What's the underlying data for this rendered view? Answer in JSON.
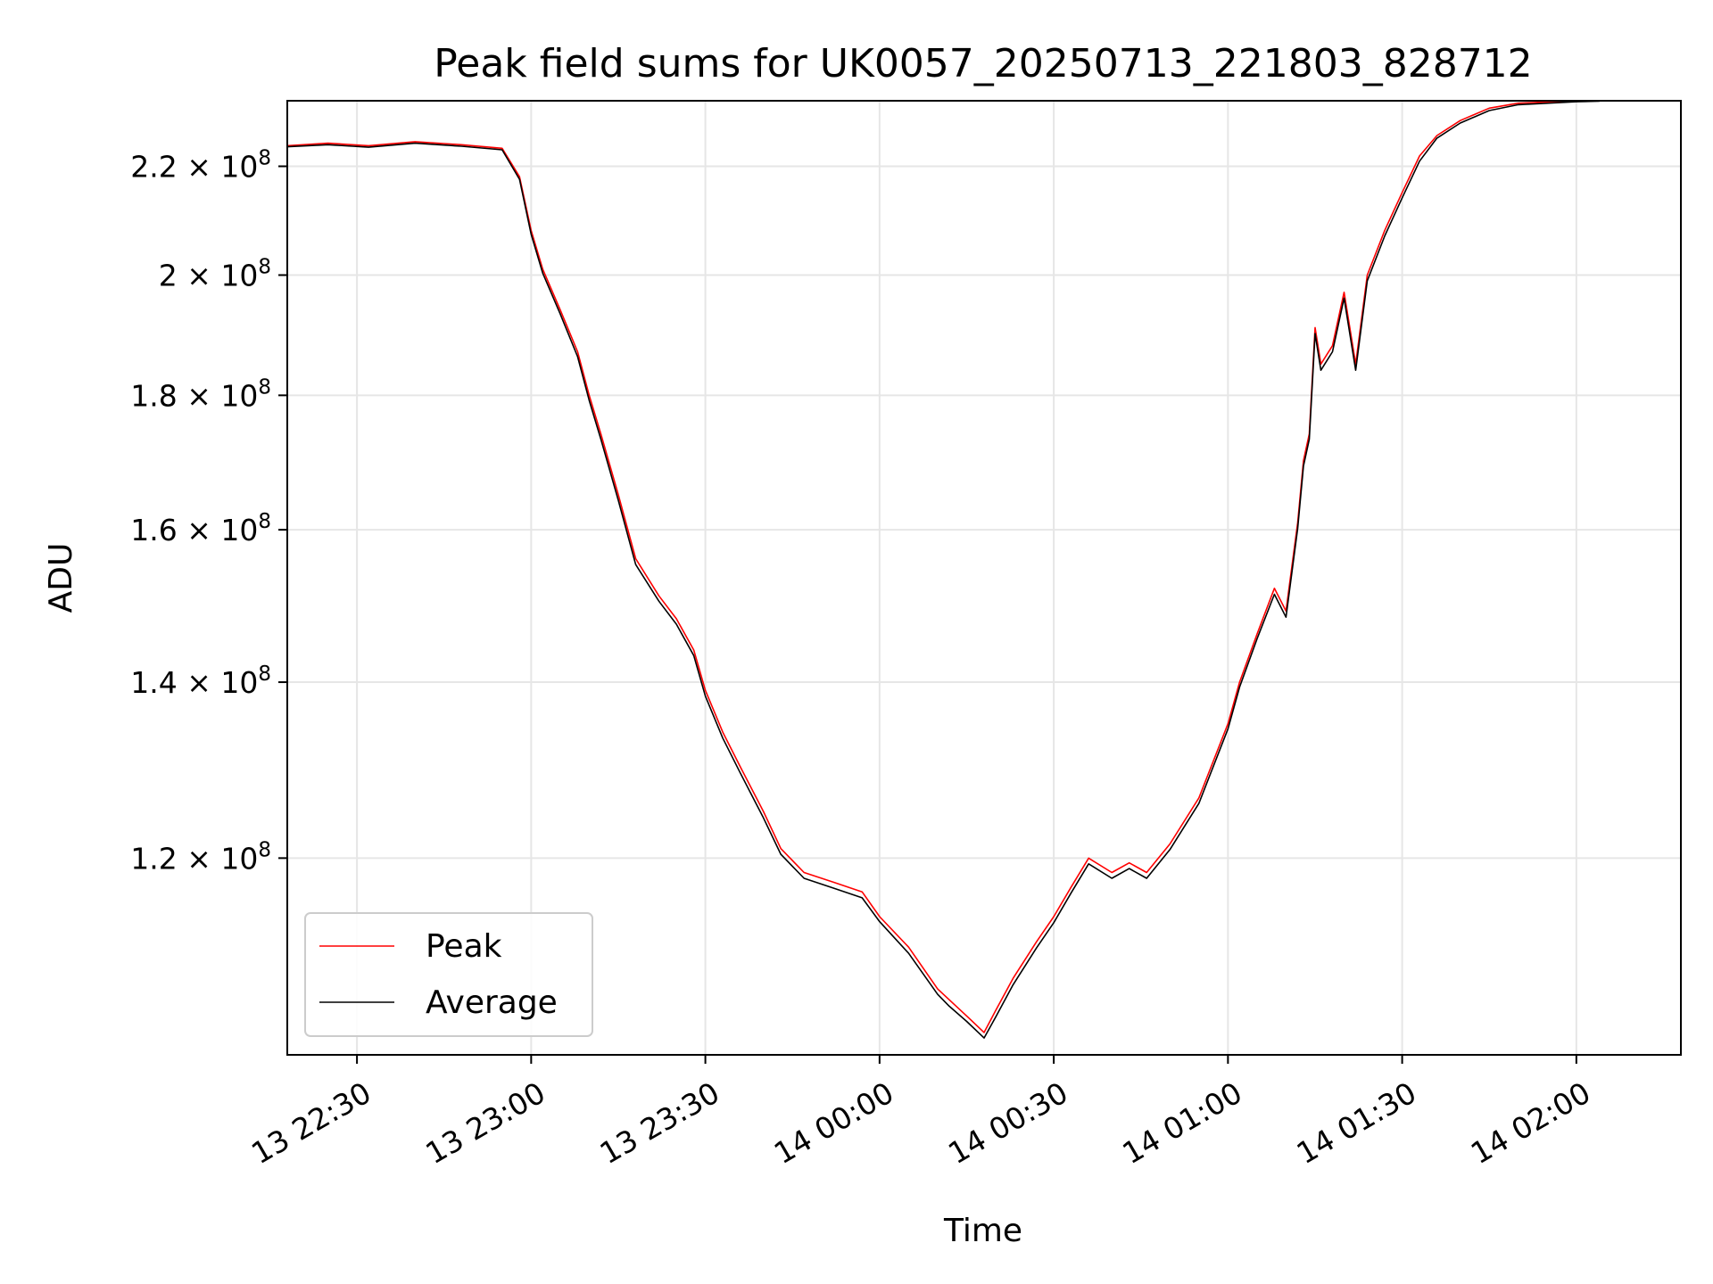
{
  "chart_data": {
    "type": "line",
    "title": "Peak field sums for UK0057_20250713_221803_828712",
    "xlabel": "Time",
    "ylabel": "ADU",
    "y_scale": "log",
    "grid": true,
    "legend_position": "lower-left",
    "xlim": [
      "2025-07-13T22:18:00",
      "2025-07-14T02:18:00"
    ],
    "ylim": [
      101000000,
      233000000
    ],
    "x_ticks": [
      {
        "value": "2025-07-13T22:30:00",
        "label": "13 22:30"
      },
      {
        "value": "2025-07-13T23:00:00",
        "label": "13 23:00"
      },
      {
        "value": "2025-07-13T23:30:00",
        "label": "13 23:30"
      },
      {
        "value": "2025-07-14T00:00:00",
        "label": "14 00:00"
      },
      {
        "value": "2025-07-14T00:30:00",
        "label": "14 00:30"
      },
      {
        "value": "2025-07-14T01:00:00",
        "label": "14 01:00"
      },
      {
        "value": "2025-07-14T01:30:00",
        "label": "14 01:30"
      },
      {
        "value": "2025-07-14T02:00:00",
        "label": "14 02:00"
      }
    ],
    "y_ticks": [
      {
        "value": 120000000,
        "mantissa": "1.2",
        "base": "10",
        "exponent": "8"
      },
      {
        "value": 140000000,
        "mantissa": "1.4",
        "base": "10",
        "exponent": "8"
      },
      {
        "value": 160000000,
        "mantissa": "1.6",
        "base": "10",
        "exponent": "8"
      },
      {
        "value": 180000000,
        "mantissa": "1.8",
        "base": "10",
        "exponent": "8"
      },
      {
        "value": 200000000,
        "mantissa": "2",
        "base": "10",
        "exponent": "8"
      },
      {
        "value": 220000000,
        "mantissa": "2.2",
        "base": "10",
        "exponent": "8"
      }
    ],
    "series": [
      {
        "name": "Peak",
        "color": "#ff0000",
        "x": [
          "2025-07-13T22:18:00",
          "2025-07-13T22:25:00",
          "2025-07-13T22:32:00",
          "2025-07-13T22:40:00",
          "2025-07-13T22:48:00",
          "2025-07-13T22:55:00",
          "2025-07-13T22:58:00",
          "2025-07-13T23:00:00",
          "2025-07-13T23:02:00",
          "2025-07-13T23:05:00",
          "2025-07-13T23:08:00",
          "2025-07-13T23:10:00",
          "2025-07-13T23:12:00",
          "2025-07-13T23:15:00",
          "2025-07-13T23:18:00",
          "2025-07-13T23:22:00",
          "2025-07-13T23:25:00",
          "2025-07-13T23:28:00",
          "2025-07-13T23:30:00",
          "2025-07-13T23:33:00",
          "2025-07-13T23:36:00",
          "2025-07-13T23:40:00",
          "2025-07-13T23:43:00",
          "2025-07-13T23:47:00",
          "2025-07-13T23:52:00",
          "2025-07-13T23:57:00",
          "2025-07-14T00:00:00",
          "2025-07-14T00:05:00",
          "2025-07-14T00:10:00",
          "2025-07-14T00:12:00",
          "2025-07-14T00:15:00",
          "2025-07-14T00:18:00",
          "2025-07-14T00:20:00",
          "2025-07-14T00:23:00",
          "2025-07-14T00:27:00",
          "2025-07-14T00:30:00",
          "2025-07-14T00:33:00",
          "2025-07-14T00:36:00",
          "2025-07-14T00:40:00",
          "2025-07-14T00:43:00",
          "2025-07-14T00:46:00",
          "2025-07-14T00:50:00",
          "2025-07-14T00:55:00",
          "2025-07-14T01:00:00",
          "2025-07-14T01:02:00",
          "2025-07-14T01:05:00",
          "2025-07-14T01:08:00",
          "2025-07-14T01:10:00",
          "2025-07-14T01:12:00",
          "2025-07-14T01:13:00",
          "2025-07-14T01:14:00",
          "2025-07-14T01:15:00",
          "2025-07-14T01:16:00",
          "2025-07-14T01:18:00",
          "2025-07-14T01:20:00",
          "2025-07-14T01:22:00",
          "2025-07-14T01:24:00",
          "2025-07-14T01:27:00",
          "2025-07-14T01:30:00",
          "2025-07-14T01:33:00",
          "2025-07-14T01:36:00",
          "2025-07-14T01:40:00",
          "2025-07-14T01:45:00",
          "2025-07-14T01:50:00",
          "2025-07-14T02:00:00",
          "2025-07-14T02:04:00"
        ],
        "values": [
          224000000,
          224500000,
          224000000,
          224800000,
          224200000,
          223500000,
          218000000,
          208000000,
          201000000,
          194000000,
          187000000,
          180000000,
          174000000,
          165000000,
          156000000,
          151000000,
          148000000,
          144000000,
          139000000,
          134000000,
          130000000,
          125000000,
          121000000,
          118500000,
          117500000,
          116500000,
          114000000,
          111000000,
          107000000,
          106000000,
          104500000,
          103000000,
          105000000,
          108000000,
          111500000,
          114000000,
          117000000,
          120000000,
          118500000,
          119500000,
          118500000,
          121500000,
          126500000,
          135000000,
          140000000,
          146000000,
          152000000,
          149000000,
          161000000,
          170000000,
          174000000,
          191000000,
          185000000,
          188000000,
          197000000,
          185000000,
          200000000,
          208000000,
          215000000,
          222000000,
          226000000,
          229000000,
          231500000,
          232500000,
          233000000,
          233000000
        ]
      },
      {
        "name": "Average",
        "color": "#000000",
        "x": [
          "2025-07-13T22:18:00",
          "2025-07-13T22:25:00",
          "2025-07-13T22:32:00",
          "2025-07-13T22:40:00",
          "2025-07-13T22:48:00",
          "2025-07-13T22:55:00",
          "2025-07-13T22:58:00",
          "2025-07-13T23:00:00",
          "2025-07-13T23:02:00",
          "2025-07-13T23:05:00",
          "2025-07-13T23:08:00",
          "2025-07-13T23:10:00",
          "2025-07-13T23:12:00",
          "2025-07-13T23:15:00",
          "2025-07-13T23:18:00",
          "2025-07-13T23:22:00",
          "2025-07-13T23:25:00",
          "2025-07-13T23:28:00",
          "2025-07-13T23:30:00",
          "2025-07-13T23:33:00",
          "2025-07-13T23:36:00",
          "2025-07-13T23:40:00",
          "2025-07-13T23:43:00",
          "2025-07-13T23:47:00",
          "2025-07-13T23:52:00",
          "2025-07-13T23:57:00",
          "2025-07-14T00:00:00",
          "2025-07-14T00:05:00",
          "2025-07-14T00:10:00",
          "2025-07-14T00:12:00",
          "2025-07-14T00:15:00",
          "2025-07-14T00:18:00",
          "2025-07-14T00:20:00",
          "2025-07-14T00:23:00",
          "2025-07-14T00:27:00",
          "2025-07-14T00:30:00",
          "2025-07-14T00:33:00",
          "2025-07-14T00:36:00",
          "2025-07-14T00:40:00",
          "2025-07-14T00:43:00",
          "2025-07-14T00:46:00",
          "2025-07-14T00:50:00",
          "2025-07-14T00:55:00",
          "2025-07-14T01:00:00",
          "2025-07-14T01:02:00",
          "2025-07-14T01:05:00",
          "2025-07-14T01:08:00",
          "2025-07-14T01:10:00",
          "2025-07-14T01:12:00",
          "2025-07-14T01:13:00",
          "2025-07-14T01:14:00",
          "2025-07-14T01:15:00",
          "2025-07-14T01:16:00",
          "2025-07-14T01:18:00",
          "2025-07-14T01:20:00",
          "2025-07-14T01:22:00",
          "2025-07-14T01:24:00",
          "2025-07-14T01:27:00",
          "2025-07-14T01:30:00",
          "2025-07-14T01:33:00",
          "2025-07-14T01:36:00",
          "2025-07-14T01:40:00",
          "2025-07-14T01:45:00",
          "2025-07-14T01:50:00",
          "2025-07-14T02:00:00",
          "2025-07-14T02:04:00"
        ],
        "values": [
          223800000,
          224200000,
          223700000,
          224500000,
          223900000,
          223200000,
          217500000,
          207300000,
          200300000,
          193300000,
          186200000,
          179200000,
          173200000,
          164200000,
          155200000,
          150300000,
          147300000,
          143300000,
          138300000,
          133300000,
          129300000,
          124300000,
          120400000,
          117900000,
          116900000,
          115900000,
          113500000,
          110400000,
          106500000,
          105400000,
          104000000,
          102500000,
          104400000,
          107400000,
          110900000,
          113400000,
          116400000,
          119400000,
          117900000,
          118900000,
          117900000,
          120900000,
          125900000,
          134400000,
          139400000,
          145400000,
          151200000,
          148200000,
          160200000,
          169200000,
          173200000,
          190000000,
          184000000,
          187000000,
          196000000,
          184000000,
          199000000,
          207000000,
          214000000,
          221000000,
          225500000,
          228500000,
          231000000,
          232200000,
          232800000,
          232900000
        ]
      }
    ]
  }
}
